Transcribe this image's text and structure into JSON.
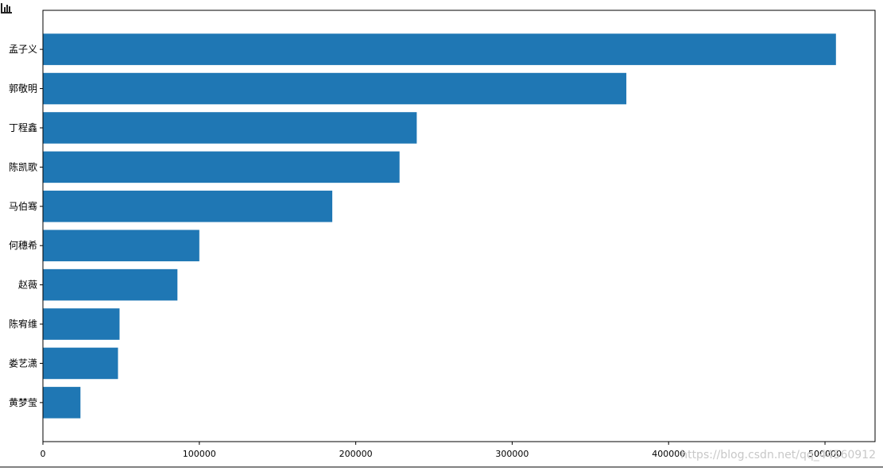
{
  "chart_data": {
    "type": "bar",
    "orientation": "horizontal",
    "categories": [
      "孟子义",
      "郭敬明",
      "丁程鑫",
      "陈凯歌",
      "马伯骞",
      "何穗希",
      "赵薇",
      "陈宥维",
      "娄艺潇",
      "黄梦莹"
    ],
    "values": [
      507000,
      373000,
      239000,
      228000,
      185000,
      100000,
      86000,
      49000,
      48000,
      24000
    ],
    "xlim": [
      0,
      532000
    ],
    "xticks": [
      0,
      100000,
      200000,
      300000,
      400000,
      500000
    ],
    "xtick_labels": [
      "0",
      "100000",
      "200000",
      "300000",
      "400000",
      "500000"
    ],
    "title": "",
    "xlabel": "",
    "ylabel": "",
    "bar_color": "#1f77b4",
    "grid": false
  },
  "toolbar": {
    "icon": "bar-chart-icon"
  },
  "watermark": "https://blog.csdn.net/qq_44560912",
  "colors": {
    "background": "#ffffff",
    "axis": "#000000",
    "watermark": "#c8c8c8"
  }
}
